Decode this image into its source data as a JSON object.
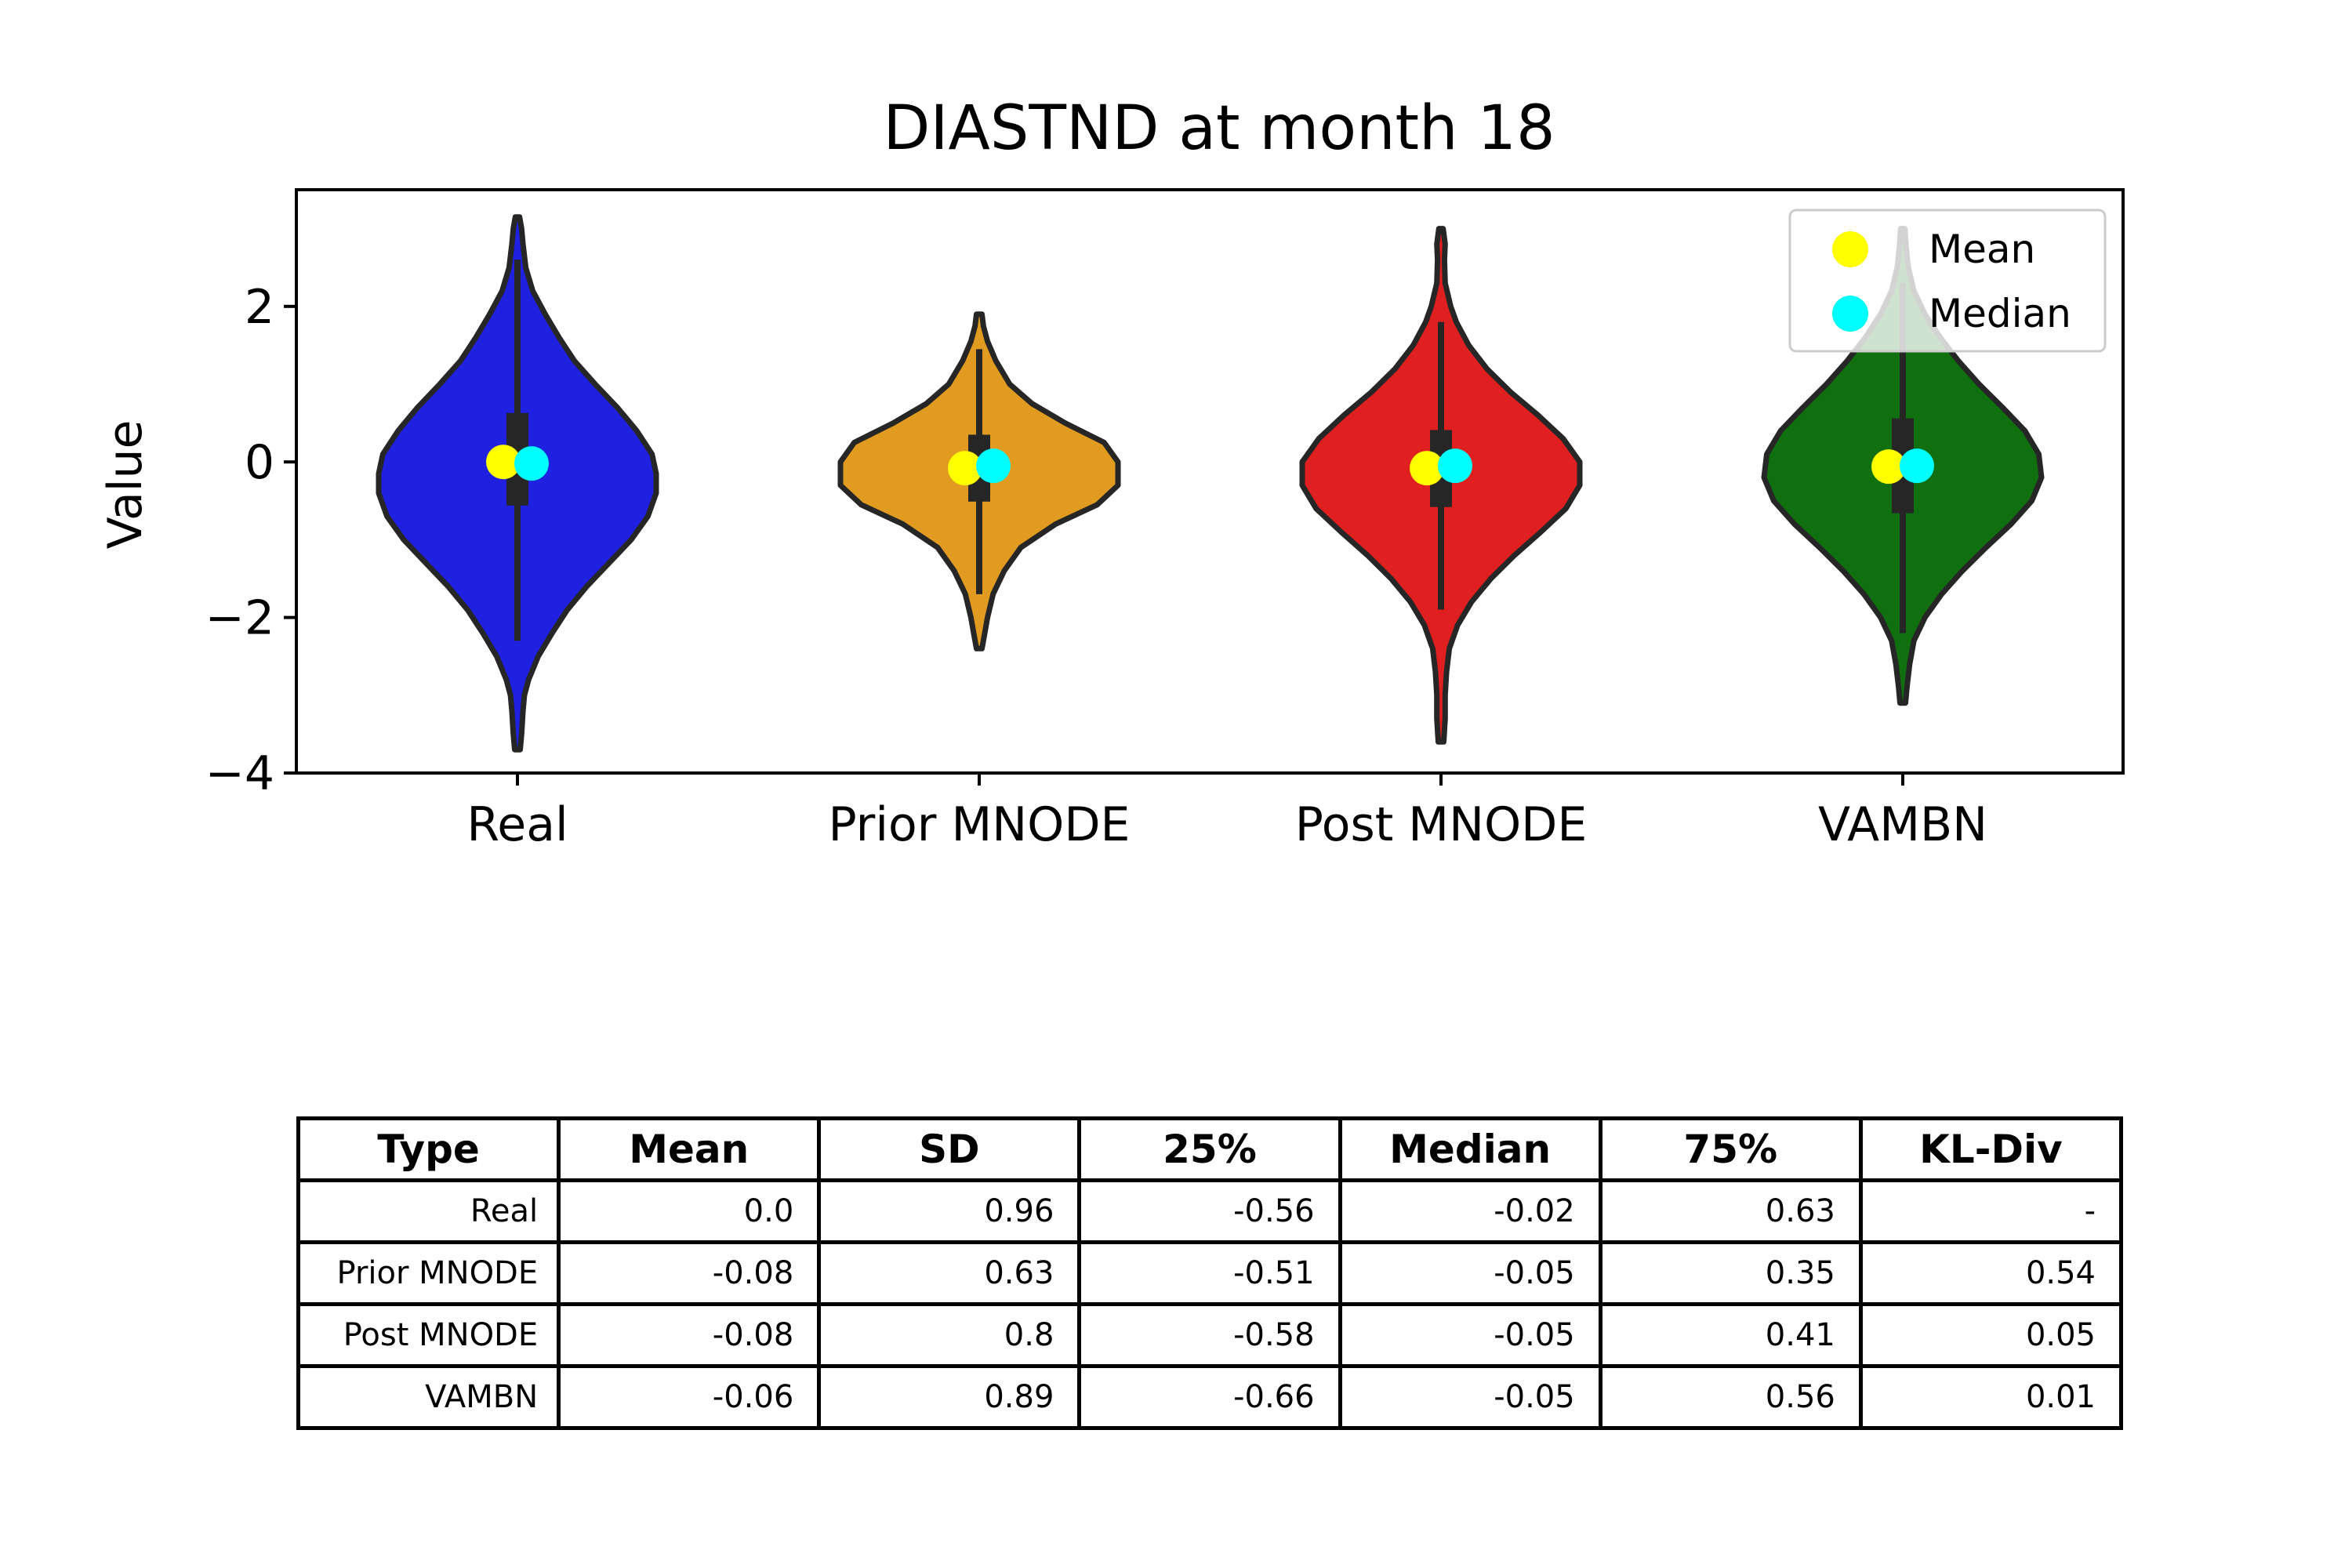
{
  "chart_data": {
    "type": "violin",
    "title": "DIASTND at month 18",
    "xlabel": "",
    "ylabel": "Value",
    "ylim": [
      -4,
      3.5
    ],
    "yticks": [
      2,
      0,
      -2,
      -4
    ],
    "ytick_labels": [
      "2",
      "0",
      "−2",
      "−4"
    ],
    "categories": [
      "Real",
      "Prior MNODE",
      "Post MNODE",
      "VAMBN"
    ],
    "colors": [
      "#2020e0",
      "#e09b20",
      "#e02020",
      "#107010"
    ],
    "mean_color": "#ffff00",
    "median_color": "#00ffff",
    "legend": {
      "placement": "top-right",
      "entries": [
        "Mean",
        "Median"
      ]
    },
    "series": [
      {
        "category": "Real",
        "mean": 0.0,
        "median": -0.02,
        "q1": -0.56,
        "q3": 0.63,
        "whisker_low": -2.3,
        "whisker_high": 2.6,
        "density": [
          [
            -3.7,
            0.02
          ],
          [
            -3.5,
            0.03
          ],
          [
            -3.2,
            0.04
          ],
          [
            -3.0,
            0.05
          ],
          [
            -2.8,
            0.08
          ],
          [
            -2.5,
            0.15
          ],
          [
            -2.2,
            0.25
          ],
          [
            -1.9,
            0.36
          ],
          [
            -1.6,
            0.5
          ],
          [
            -1.3,
            0.66
          ],
          [
            -1.0,
            0.82
          ],
          [
            -0.7,
            0.94
          ],
          [
            -0.4,
            1.0
          ],
          [
            -0.15,
            1.0
          ],
          [
            0.1,
            0.97
          ],
          [
            0.4,
            0.86
          ],
          [
            0.7,
            0.72
          ],
          [
            1.0,
            0.56
          ],
          [
            1.3,
            0.41
          ],
          [
            1.6,
            0.3
          ],
          [
            1.9,
            0.2
          ],
          [
            2.2,
            0.11
          ],
          [
            2.5,
            0.06
          ],
          [
            2.8,
            0.04
          ],
          [
            3.0,
            0.03
          ],
          [
            3.15,
            0.015
          ]
        ]
      },
      {
        "category": "Prior MNODE",
        "mean": -0.08,
        "median": -0.05,
        "q1": -0.51,
        "q3": 0.35,
        "whisker_low": -1.7,
        "whisker_high": 1.45,
        "density": [
          [
            -2.4,
            0.02
          ],
          [
            -2.2,
            0.04
          ],
          [
            -2.0,
            0.06
          ],
          [
            -1.7,
            0.1
          ],
          [
            -1.4,
            0.18
          ],
          [
            -1.1,
            0.3
          ],
          [
            -0.8,
            0.55
          ],
          [
            -0.55,
            0.85
          ],
          [
            -0.3,
            1.0
          ],
          [
            0.0,
            1.0
          ],
          [
            0.25,
            0.9
          ],
          [
            0.5,
            0.62
          ],
          [
            0.75,
            0.38
          ],
          [
            1.0,
            0.22
          ],
          [
            1.3,
            0.12
          ],
          [
            1.55,
            0.06
          ],
          [
            1.75,
            0.03
          ],
          [
            1.9,
            0.02
          ]
        ]
      },
      {
        "category": "Post MNODE",
        "mean": -0.08,
        "median": -0.05,
        "q1": -0.58,
        "q3": 0.41,
        "whisker_low": -1.9,
        "whisker_high": 1.8,
        "density": [
          [
            -3.6,
            0.02
          ],
          [
            -3.3,
            0.03
          ],
          [
            -3.0,
            0.03
          ],
          [
            -2.7,
            0.04
          ],
          [
            -2.4,
            0.06
          ],
          [
            -2.1,
            0.12
          ],
          [
            -1.8,
            0.22
          ],
          [
            -1.5,
            0.36
          ],
          [
            -1.2,
            0.53
          ],
          [
            -0.9,
            0.72
          ],
          [
            -0.6,
            0.9
          ],
          [
            -0.3,
            1.0
          ],
          [
            0.0,
            1.0
          ],
          [
            0.3,
            0.88
          ],
          [
            0.6,
            0.7
          ],
          [
            0.9,
            0.5
          ],
          [
            1.2,
            0.33
          ],
          [
            1.5,
            0.2
          ],
          [
            1.8,
            0.11
          ],
          [
            2.0,
            0.07
          ],
          [
            2.3,
            0.03
          ],
          [
            2.6,
            0.025
          ],
          [
            2.8,
            0.03
          ],
          [
            3.0,
            0.015
          ]
        ]
      },
      {
        "category": "VAMBN",
        "mean": -0.06,
        "median": -0.05,
        "q1": -0.66,
        "q3": 0.56,
        "whisker_low": -2.2,
        "whisker_high": 2.3,
        "density": [
          [
            -3.1,
            0.02
          ],
          [
            -2.9,
            0.03
          ],
          [
            -2.6,
            0.05
          ],
          [
            -2.3,
            0.08
          ],
          [
            -2.0,
            0.16
          ],
          [
            -1.7,
            0.28
          ],
          [
            -1.4,
            0.43
          ],
          [
            -1.1,
            0.6
          ],
          [
            -0.8,
            0.78
          ],
          [
            -0.5,
            0.93
          ],
          [
            -0.2,
            1.0
          ],
          [
            0.1,
            0.98
          ],
          [
            0.4,
            0.88
          ],
          [
            0.7,
            0.72
          ],
          [
            1.0,
            0.55
          ],
          [
            1.3,
            0.4
          ],
          [
            1.6,
            0.27
          ],
          [
            1.9,
            0.16
          ],
          [
            2.2,
            0.08
          ],
          [
            2.5,
            0.04
          ],
          [
            2.75,
            0.025
          ],
          [
            3.0,
            0.015
          ]
        ]
      }
    ]
  },
  "table": {
    "headers": [
      "Type",
      "Mean",
      "SD",
      "25%",
      "Median",
      "75%",
      "KL-Div"
    ],
    "rows": [
      [
        "Real",
        "0.0",
        "0.96",
        "-0.56",
        "-0.02",
        "0.63",
        "-"
      ],
      [
        "Prior MNODE",
        "-0.08",
        "0.63",
        "-0.51",
        "-0.05",
        "0.35",
        "0.54"
      ],
      [
        "Post MNODE",
        "-0.08",
        "0.8",
        "-0.58",
        "-0.05",
        "0.41",
        "0.05"
      ],
      [
        "VAMBN",
        "-0.06",
        "0.89",
        "-0.66",
        "-0.05",
        "0.56",
        "0.01"
      ]
    ]
  }
}
